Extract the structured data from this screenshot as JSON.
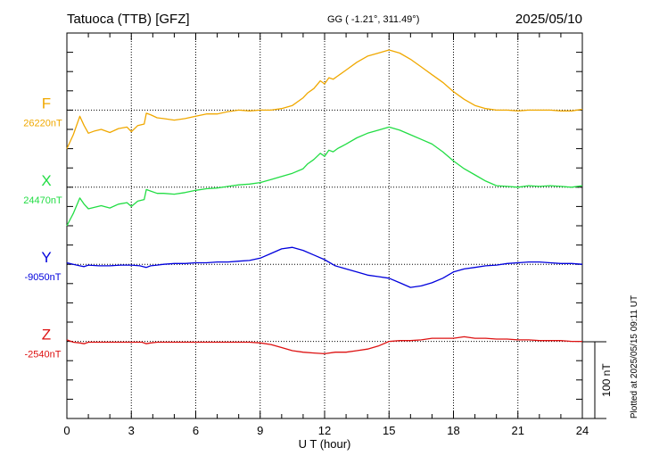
{
  "header": {
    "title": "Tatuoca (TTB)  [GFZ]",
    "coords": "GG ( -1.21°, 311.49°)",
    "date": "2025/05/10"
  },
  "footer": {
    "plotted_note": "Plotted at 2025/05/15 09:11 UT",
    "scale_label": "100 nT"
  },
  "chart_data": {
    "type": "line",
    "title": "Tatuoca (TTB)  [GFZ]",
    "xlabel": "U T (hour)",
    "ylabel": "",
    "xlim": [
      0,
      24
    ],
    "xticks": [
      0,
      3,
      6,
      9,
      12,
      15,
      18,
      21,
      24
    ],
    "xtick_labels": [
      "0",
      "3",
      "6",
      "9",
      "12",
      "15",
      "18",
      "21",
      "24"
    ],
    "nT_per_division": 25,
    "scale_bar_nT": 100,
    "grid": true,
    "series": [
      {
        "name": "F",
        "baseline_label": "26220nT",
        "color": "#f0a800",
        "baseline_nT": 26220,
        "x": [
          0,
          0.3,
          0.6,
          0.8,
          1.0,
          1.3,
          1.6,
          2.0,
          2.4,
          2.8,
          3.0,
          3.3,
          3.6,
          3.7,
          3.9,
          4.2,
          4.5,
          5.0,
          5.5,
          6.0,
          6.5,
          7.0,
          7.5,
          8.0,
          8.5,
          9.0,
          9.5,
          10.0,
          10.5,
          11.0,
          11.2,
          11.5,
          11.8,
          12.0,
          12.2,
          12.4,
          12.6,
          13.0,
          13.5,
          14.0,
          14.5,
          15.0,
          15.5,
          16.0,
          16.5,
          17.0,
          17.5,
          18.0,
          18.5,
          19.0,
          19.5,
          20.0,
          20.5,
          21.0,
          21.5,
          22.0,
          22.5,
          23.0,
          23.5,
          24.0
        ],
        "y": [
          -50,
          -32,
          -8,
          -20,
          -30,
          -27,
          -25,
          -29,
          -24,
          -22,
          -28,
          -20,
          -18,
          -4,
          -6,
          -10,
          -11,
          -13,
          -11,
          -8,
          -5,
          -5,
          -2,
          0,
          -1,
          0,
          0,
          2,
          6,
          16,
          22,
          28,
          38,
          34,
          42,
          40,
          44,
          52,
          62,
          70,
          74,
          78,
          74,
          66,
          56,
          46,
          36,
          24,
          14,
          6,
          2,
          0,
          0,
          -1,
          0,
          0,
          0,
          -1,
          -1,
          1
        ]
      },
      {
        "name": "X",
        "baseline_label": "24470nT",
        "color": "#22dd44",
        "baseline_nT": 24470,
        "x": [
          0,
          0.3,
          0.6,
          0.8,
          1.0,
          1.3,
          1.6,
          2.0,
          2.4,
          2.8,
          3.0,
          3.3,
          3.6,
          3.7,
          3.9,
          4.2,
          4.5,
          5.0,
          5.5,
          6.0,
          6.5,
          7.0,
          7.5,
          8.0,
          8.5,
          9.0,
          9.5,
          10.0,
          10.5,
          11.0,
          11.2,
          11.5,
          11.8,
          12.0,
          12.2,
          12.4,
          12.6,
          13.0,
          13.5,
          14.0,
          14.5,
          15.0,
          15.5,
          16.0,
          16.5,
          17.0,
          17.5,
          18.0,
          18.5,
          19.0,
          19.5,
          20.0,
          20.5,
          21.0,
          21.5,
          22.0,
          22.5,
          23.0,
          23.5,
          24.0
        ],
        "y": [
          -50,
          -34,
          -14,
          -22,
          -28,
          -26,
          -24,
          -27,
          -22,
          -20,
          -25,
          -18,
          -16,
          -3,
          -5,
          -8,
          -8,
          -9,
          -7,
          -4,
          -2,
          -1,
          1,
          3,
          4,
          6,
          10,
          14,
          18,
          24,
          30,
          36,
          44,
          40,
          48,
          46,
          50,
          56,
          64,
          70,
          74,
          78,
          74,
          68,
          62,
          56,
          46,
          34,
          24,
          16,
          8,
          2,
          1,
          0,
          2,
          1,
          2,
          1,
          0,
          2
        ]
      },
      {
        "name": "Y",
        "baseline_label": "-9050nT",
        "color": "#0000dd",
        "baseline_nT": -9050,
        "x": [
          0,
          0.3,
          0.6,
          0.8,
          1.0,
          1.5,
          2.0,
          2.5,
          3.0,
          3.4,
          3.7,
          3.9,
          4.2,
          4.5,
          5.0,
          5.5,
          6.0,
          6.5,
          7.0,
          7.5,
          8.0,
          8.5,
          9.0,
          9.5,
          10.0,
          10.5,
          11.0,
          11.5,
          12.0,
          12.5,
          13.0,
          13.5,
          14.0,
          14.5,
          15.0,
          15.5,
          16.0,
          16.5,
          17.0,
          17.5,
          18.0,
          18.5,
          19.0,
          19.5,
          20.0,
          20.5,
          21.0,
          21.5,
          22.0,
          22.5,
          23.0,
          23.5,
          24.0
        ],
        "y": [
          2,
          0,
          -2,
          -3,
          -1,
          -2,
          -2,
          -1,
          -1,
          -2,
          -4,
          -2,
          -1,
          0,
          1,
          1,
          2,
          2,
          3,
          3,
          4,
          5,
          8,
          14,
          20,
          22,
          18,
          12,
          6,
          -2,
          -6,
          -10,
          -14,
          -16,
          -18,
          -24,
          -30,
          -28,
          -24,
          -18,
          -10,
          -6,
          -4,
          -2,
          -1,
          1,
          2,
          3,
          3,
          2,
          1,
          1,
          0
        ]
      },
      {
        "name": "Z",
        "baseline_label": "-2540nT",
        "color": "#dd1111",
        "baseline_nT": -2540,
        "x": [
          0,
          0.3,
          0.6,
          0.8,
          1.0,
          1.5,
          2.0,
          2.5,
          3.0,
          3.5,
          3.7,
          3.9,
          4.2,
          5.0,
          6.0,
          7.0,
          8.0,
          8.5,
          9.0,
          9.5,
          10.0,
          10.5,
          11.0,
          11.5,
          12.0,
          12.5,
          13.0,
          13.5,
          14.0,
          14.5,
          15.0,
          15.5,
          16.0,
          16.5,
          17.0,
          17.5,
          18.0,
          18.5,
          19.0,
          19.5,
          20.0,
          20.5,
          21.0,
          21.5,
          22.0,
          22.5,
          23.0,
          23.5,
          24.0
        ],
        "y": [
          2,
          -1,
          -2,
          -3,
          -1,
          -1,
          -1,
          -1,
          -1,
          -1,
          -3,
          -2,
          -1,
          -1,
          -1,
          -1,
          -1,
          -1,
          -2,
          -4,
          -8,
          -12,
          -14,
          -15,
          -16,
          -14,
          -14,
          -12,
          -10,
          -6,
          0,
          1,
          1,
          2,
          4,
          4,
          4,
          6,
          4,
          4,
          3,
          3,
          2,
          2,
          1,
          1,
          1,
          0,
          0
        ]
      }
    ]
  }
}
